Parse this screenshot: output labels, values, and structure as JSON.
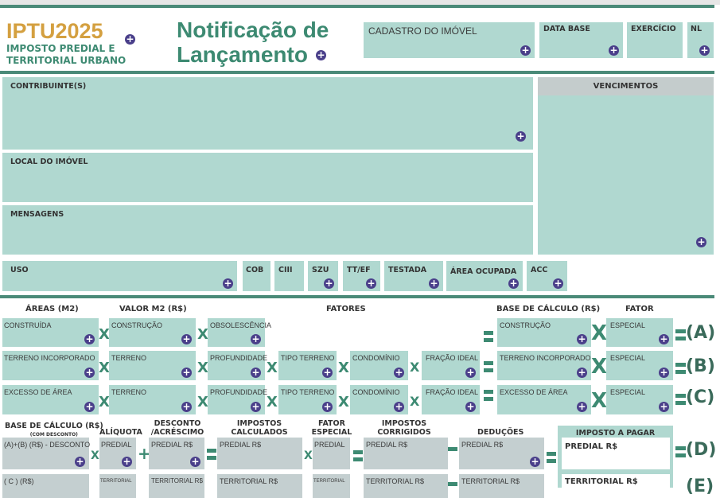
{
  "header": {
    "brand": "IPTU2025",
    "subtitle_1": "IMPOSTO PREDIAL E",
    "subtitle_2": "TERRITORIAL URBANO",
    "title_1": "Notificação de",
    "title_2": "Lançamento"
  },
  "top_fields": {
    "cadastro": "CADASTRO DO IMÓVEL",
    "data_base": "DATA BASE",
    "exercicio": "EXERCÍCIO",
    "nl": "NL"
  },
  "info": {
    "contribuinte": "CONTRIBUINTE(S)",
    "local": "LOCAL DO IMÓVEL",
    "mensagens": "MENSAGENS",
    "vencimentos": "VENCIMENTOS"
  },
  "attributes": [
    "USO",
    "COB",
    "CIII",
    "SZU",
    "TT/EF",
    "TESTADA",
    "ÁREA OCUPADA",
    "ACC"
  ],
  "calc_headers": {
    "areas": "ÁREAS (M2)",
    "valor": "VALOR M2 (R$)",
    "fatores": "FATORES",
    "base": "BASE DE CÁLCULO (R$)",
    "fator": "FATOR"
  },
  "rows": [
    {
      "area": "CONSTRUÍDA",
      "valor": "CONSTRUÇÃO",
      "f1": "OBSOLESCÊNCIA",
      "base": "CONSTRUÇÃO",
      "fator": "ESPECIAL",
      "result": "(A)"
    },
    {
      "area": "TERRENO INCORPORADO",
      "valor": "TERRENO",
      "f1": "PROFUNDIDADE",
      "f2": "TIPO TERRENO",
      "f3": "CONDOMÍNIO",
      "f4": "FRAÇÃO IDEAL",
      "base": "TERRENO INCORPORADO",
      "fator": "ESPECIAL",
      "result": "(B)"
    },
    {
      "area": "EXCESSO DE ÁREA",
      "valor": "TERRENO",
      "f1": "PROFUNDIDADE",
      "f2": "TIPO TERRENO",
      "f3": "CONDOMÍNIO",
      "f4": "FRAÇÃO IDEAL",
      "base": "EXCESSO DE ÁREA",
      "fator": "ESPECIAL",
      "result": "(C)"
    }
  ],
  "tax_headers": {
    "base": "BASE DE CÁLCULO (R$)",
    "base_sub": "(COM DESCONTO)",
    "aliquota": "ALÍQUOTA",
    "desconto_1": "DESCONTO",
    "desconto_2": "/ACRÉSCIMO",
    "calc_1": "IMPOSTOS",
    "calc_2": "CALCULADOS",
    "fator_1": "FATOR",
    "fator_2": "ESPECIAL",
    "corr_1": "IMPOSTOS",
    "corr_2": "CORRIGIDOS",
    "deducoes": "DEDUÇÕES",
    "pagar": "IMPOSTO A PAGAR"
  },
  "tax_rows": [
    {
      "base": "(A)+(B)  (R$) - DESCONTO",
      "aliquota": "PREDIAL",
      "desconto": "PREDIAL R$",
      "calc": "PREDIAL R$",
      "fator": "PREDIAL",
      "corr": "PREDIAL R$",
      "ded": "PREDIAL R$",
      "pagar": "PREDIAL R$",
      "result": "(D)"
    },
    {
      "base": "( C )  (R$)",
      "aliquota": "TERRITORIAL",
      "desconto": "TERRITORIAL R$",
      "calc": "TERRITORIAL R$",
      "fator": "TERRITORIAL",
      "corr": "TERRITORIAL R$",
      "ded": "TERRITORIAL R$",
      "pagar": "TERRITORIAL R$",
      "result": "(E)"
    }
  ],
  "colors": {
    "accent": "#4a8a78",
    "gold": "#d4a040",
    "field": "#b0d8d0",
    "plus": "#4a3f8a"
  }
}
